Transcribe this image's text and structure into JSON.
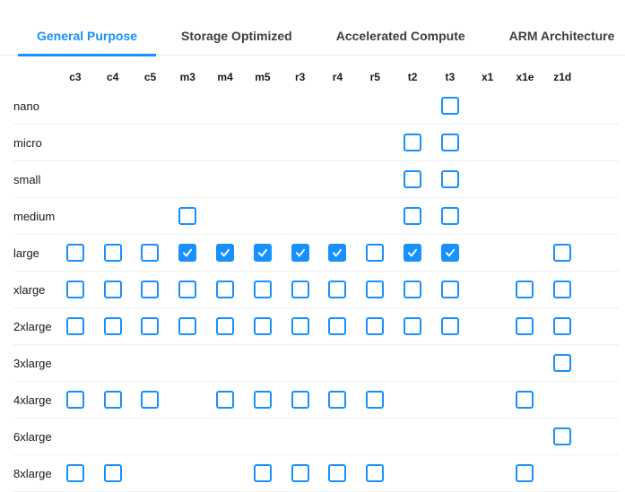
{
  "tabs": [
    {
      "label": "General Purpose",
      "active": true
    },
    {
      "label": "Storage Optimized",
      "active": false
    },
    {
      "label": "Accelerated Compute",
      "active": false
    },
    {
      "label": "ARM Architecture",
      "active": false
    }
  ],
  "columns": [
    "c3",
    "c4",
    "c5",
    "m3",
    "m4",
    "m5",
    "r3",
    "r4",
    "r5",
    "t2",
    "t3",
    "x1",
    "x1e",
    "z1d"
  ],
  "rows": [
    {
      "label": "nano",
      "boxes": {
        "t3": false
      }
    },
    {
      "label": "micro",
      "boxes": {
        "t2": false,
        "t3": false
      }
    },
    {
      "label": "small",
      "boxes": {
        "t2": false,
        "t3": false
      }
    },
    {
      "label": "medium",
      "boxes": {
        "m3": false,
        "t2": false,
        "t3": false
      }
    },
    {
      "label": "large",
      "boxes": {
        "c3": false,
        "c4": false,
        "c5": false,
        "m3": true,
        "m4": true,
        "m5": true,
        "r3": true,
        "r4": true,
        "r5": false,
        "t2": true,
        "t3": true,
        "z1d": false
      }
    },
    {
      "label": "xlarge",
      "boxes": {
        "c3": false,
        "c4": false,
        "c5": false,
        "m3": false,
        "m4": false,
        "m5": false,
        "r3": false,
        "r4": false,
        "r5": false,
        "t2": false,
        "t3": false,
        "x1e": false,
        "z1d": false
      }
    },
    {
      "label": "2xlarge",
      "boxes": {
        "c3": false,
        "c4": false,
        "c5": false,
        "m3": false,
        "m4": false,
        "m5": false,
        "r3": false,
        "r4": false,
        "r5": false,
        "t2": false,
        "t3": false,
        "x1e": false,
        "z1d": false
      }
    },
    {
      "label": "3xlarge",
      "boxes": {
        "z1d": false
      }
    },
    {
      "label": "4xlarge",
      "boxes": {
        "c3": false,
        "c4": false,
        "c5": false,
        "m4": false,
        "m5": false,
        "r3": false,
        "r4": false,
        "r5": false,
        "x1e": false
      }
    },
    {
      "label": "6xlarge",
      "boxes": {
        "z1d": false
      }
    },
    {
      "label": "8xlarge",
      "boxes": {
        "c3": false,
        "c4": false,
        "m5": false,
        "r3": false,
        "r4": false,
        "r5": false,
        "x1e": false
      }
    }
  ],
  "colors": {
    "accent": "#1890ff",
    "text": "#16191f",
    "tab_inactive": "#3b4045",
    "separator": "#efefef",
    "tab_border": "#e9e9e9",
    "checkmark": "#ffffff"
  }
}
